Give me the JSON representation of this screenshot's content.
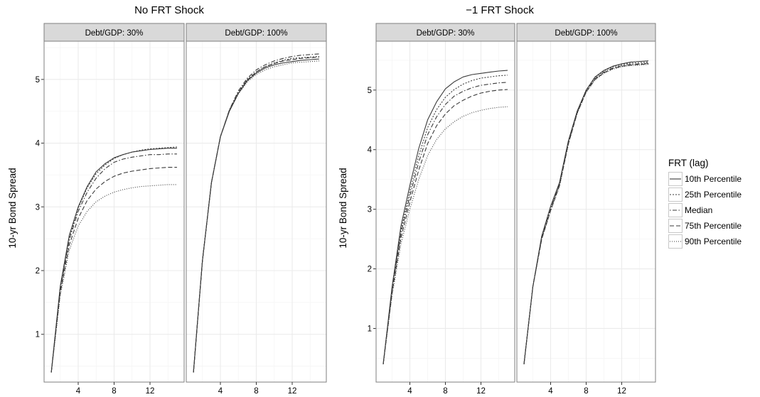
{
  "chart_data": [
    {
      "type": "line",
      "title": "No FRT Shock",
      "ylabel": "10-yr Bond Spread",
      "xlabel": "",
      "x_ticks": [
        4,
        8,
        12
      ],
      "y_ticks": [
        1,
        2,
        3,
        4,
        5
      ],
      "xlim": [
        0.2,
        15.8
      ],
      "ylim": [
        0.25,
        5.6
      ],
      "grid": true,
      "panels": [
        {
          "strip": "Debt/GDP: 30%",
          "x": [
            1,
            2,
            3,
            4,
            5,
            6,
            7,
            8,
            9,
            10,
            11,
            12,
            13,
            14,
            15
          ],
          "series": [
            {
              "name": "10th Percentile",
              "values": [
                0.4,
                1.75,
                2.55,
                3.0,
                3.32,
                3.55,
                3.68,
                3.77,
                3.82,
                3.86,
                3.88,
                3.9,
                3.91,
                3.92,
                3.92
              ]
            },
            {
              "name": "25th Percentile",
              "values": [
                0.4,
                1.73,
                2.52,
                2.98,
                3.3,
                3.52,
                3.66,
                3.76,
                3.82,
                3.86,
                3.89,
                3.91,
                3.92,
                3.93,
                3.94
              ]
            },
            {
              "name": "Median",
              "values": [
                0.4,
                1.7,
                2.48,
                2.93,
                3.23,
                3.45,
                3.6,
                3.7,
                3.75,
                3.78,
                3.8,
                3.82,
                3.82,
                3.83,
                3.83
              ]
            },
            {
              "name": "75th Percentile",
              "values": [
                0.4,
                1.65,
                2.4,
                2.82,
                3.1,
                3.28,
                3.4,
                3.48,
                3.53,
                3.56,
                3.58,
                3.6,
                3.61,
                3.62,
                3.62
              ]
            },
            {
              "name": "90th Percentile",
              "values": [
                0.4,
                1.6,
                2.32,
                2.7,
                2.93,
                3.08,
                3.17,
                3.23,
                3.27,
                3.3,
                3.32,
                3.33,
                3.34,
                3.35,
                3.35
              ]
            }
          ]
        },
        {
          "strip": "Debt/GDP: 100%",
          "x": [
            1,
            2,
            3,
            4,
            5,
            6,
            7,
            8,
            9,
            10,
            11,
            12,
            13,
            14,
            15
          ],
          "series": [
            {
              "name": "10th Percentile",
              "values": [
                0.4,
                2.15,
                3.38,
                4.1,
                4.5,
                4.78,
                4.98,
                5.1,
                5.18,
                5.23,
                5.26,
                5.28,
                5.3,
                5.31,
                5.32
              ]
            },
            {
              "name": "25th Percentile",
              "values": [
                0.4,
                2.15,
                3.38,
                4.1,
                4.52,
                4.8,
                5.0,
                5.12,
                5.2,
                5.26,
                5.3,
                5.33,
                5.34,
                5.35,
                5.36
              ]
            },
            {
              "name": "Median",
              "values": [
                0.4,
                2.15,
                3.38,
                4.1,
                4.52,
                4.82,
                5.02,
                5.15,
                5.23,
                5.29,
                5.33,
                5.36,
                5.38,
                5.39,
                5.4
              ]
            },
            {
              "name": "75th Percentile",
              "values": [
                0.4,
                2.15,
                3.38,
                4.1,
                4.51,
                4.79,
                4.99,
                5.12,
                5.2,
                5.25,
                5.29,
                5.31,
                5.33,
                5.34,
                5.35
              ]
            },
            {
              "name": "90th Percentile",
              "values": [
                0.4,
                2.15,
                3.38,
                4.1,
                4.5,
                4.77,
                4.96,
                5.08,
                5.15,
                5.2,
                5.23,
                5.26,
                5.27,
                5.28,
                5.29
              ]
            }
          ]
        }
      ]
    },
    {
      "type": "line",
      "title": "−1 FRT Shock",
      "ylabel": "10-yr Bond Spread",
      "xlabel": "",
      "x_ticks": [
        4,
        8,
        12
      ],
      "y_ticks": [
        1,
        2,
        3,
        4,
        5
      ],
      "xlim": [
        0.2,
        15.8
      ],
      "ylim": [
        0.1,
        5.82
      ],
      "grid": true,
      "panels": [
        {
          "strip": "Debt/GDP: 30%",
          "x": [
            1,
            2,
            3,
            4,
            5,
            6,
            7,
            8,
            9,
            10,
            11,
            12,
            13,
            14,
            15
          ],
          "series": [
            {
              "name": "10th Percentile",
              "values": [
                0.4,
                1.7,
                2.72,
                3.4,
                4.02,
                4.5,
                4.8,
                5.02,
                5.14,
                5.22,
                5.26,
                5.28,
                5.3,
                5.32,
                5.33
              ]
            },
            {
              "name": "25th Percentile",
              "values": [
                0.4,
                1.67,
                2.65,
                3.3,
                3.9,
                4.37,
                4.67,
                4.88,
                5.01,
                5.1,
                5.16,
                5.2,
                5.22,
                5.24,
                5.25
              ]
            },
            {
              "name": "Median",
              "values": [
                0.4,
                1.64,
                2.6,
                3.22,
                3.79,
                4.25,
                4.55,
                4.76,
                4.9,
                4.98,
                5.04,
                5.08,
                5.1,
                5.12,
                5.13
              ]
            },
            {
              "name": "75th Percentile",
              "values": [
                0.4,
                1.6,
                2.52,
                3.12,
                3.66,
                4.1,
                4.4,
                4.6,
                4.74,
                4.83,
                4.9,
                4.95,
                4.98,
                5.0,
                5.01
              ]
            },
            {
              "name": "90th Percentile",
              "values": [
                0.4,
                1.55,
                2.42,
                3.0,
                3.5,
                3.9,
                4.17,
                4.35,
                4.47,
                4.56,
                4.62,
                4.66,
                4.69,
                4.71,
                4.72
              ]
            }
          ]
        },
        {
          "strip": "Debt/GDP: 100%",
          "x": [
            1,
            2,
            3,
            4,
            5,
            6,
            7,
            8,
            9,
            10,
            11,
            12,
            13,
            14,
            15
          ],
          "series": [
            {
              "name": "10th Percentile",
              "values": [
                0.4,
                1.7,
                2.55,
                3.05,
                3.45,
                4.15,
                4.65,
                5.0,
                5.22,
                5.33,
                5.4,
                5.44,
                5.47,
                5.48,
                5.49
              ]
            },
            {
              "name": "25th Percentile",
              "values": [
                0.4,
                1.7,
                2.55,
                3.04,
                3.44,
                4.14,
                4.65,
                5.0,
                5.21,
                5.32,
                5.39,
                5.43,
                5.45,
                5.46,
                5.47
              ]
            },
            {
              "name": "Median",
              "values": [
                0.4,
                1.7,
                2.52,
                3.0,
                3.42,
                4.12,
                4.63,
                4.98,
                5.19,
                5.3,
                5.37,
                5.41,
                5.43,
                5.44,
                5.45
              ]
            },
            {
              "name": "75th Percentile",
              "values": [
                0.4,
                1.7,
                2.5,
                2.98,
                3.4,
                4.1,
                4.62,
                4.97,
                5.18,
                5.29,
                5.36,
                5.4,
                5.42,
                5.43,
                5.44
              ]
            },
            {
              "name": "90th Percentile",
              "values": [
                0.4,
                1.7,
                2.5,
                2.97,
                3.38,
                4.09,
                4.61,
                4.96,
                5.17,
                5.28,
                5.35,
                5.39,
                5.41,
                5.42,
                5.43
              ]
            }
          ]
        }
      ]
    }
  ],
  "legend": {
    "title": "FRT (lag)",
    "placement": "right",
    "items": [
      {
        "label": "10th Percentile",
        "linetype": "solid"
      },
      {
        "label": "25th Percentile",
        "linetype": "dotted"
      },
      {
        "label": "Median",
        "linetype": "dotdash"
      },
      {
        "label": "75th Percentile",
        "linetype": "dashed"
      },
      {
        "label": "90th Percentile",
        "linetype": "fine-dotted"
      }
    ]
  },
  "colors": {
    "line": "#3a3a3a",
    "strip_fill": "#d9d9d9",
    "strip_border": "#7f7f7f",
    "grid_major": "#ebebeb",
    "grid_minor": "#f5f5f5",
    "panel_border": "#7f7f7f"
  }
}
